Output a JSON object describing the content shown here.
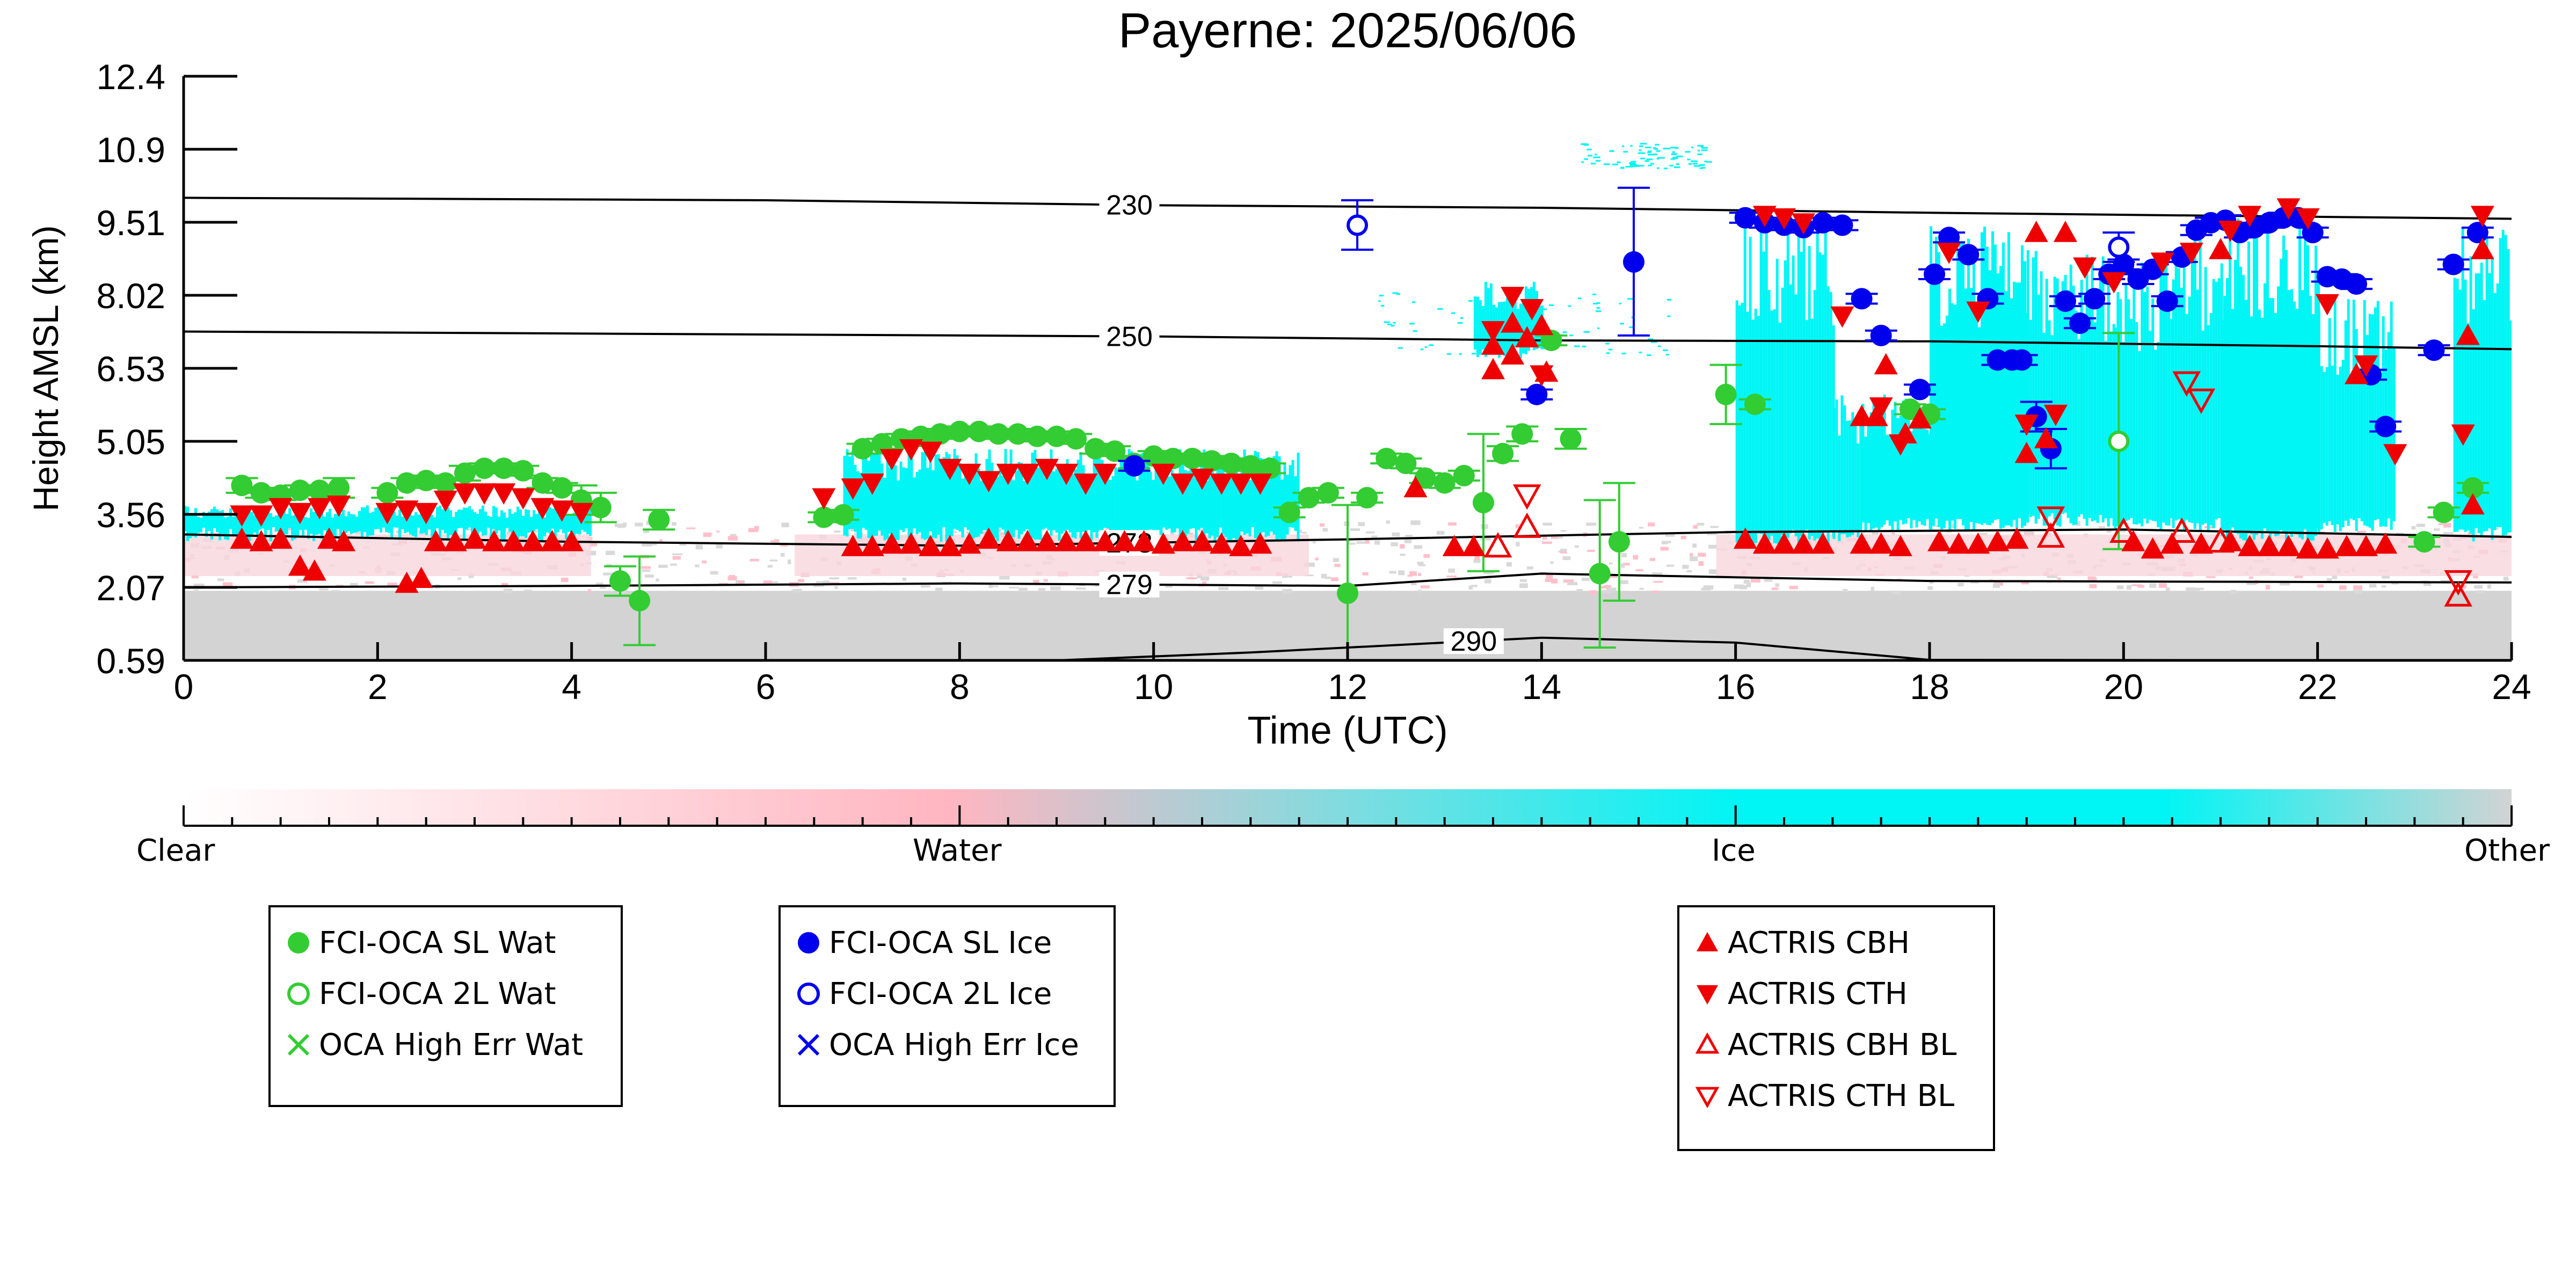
{
  "chart_data": {
    "type": "scatter",
    "title": "Payerne: 2025/06/06",
    "xlabel": "Time (UTC)",
    "ylabel": "Height AMSL (km)",
    "xlim": [
      0,
      24
    ],
    "ylim": [
      0.59,
      12.4
    ],
    "x_ticks": [
      "0",
      "2",
      "4",
      "6",
      "8",
      "10",
      "12",
      "14",
      "16",
      "18",
      "20",
      "22",
      "24"
    ],
    "y_ticks": [
      "0.59",
      "2.07",
      "3.56",
      "5.05",
      "6.53",
      "8.02",
      "9.51",
      "10.9",
      "12.4"
    ],
    "y_tick_values": [
      0.59,
      2.07,
      3.56,
      5.05,
      6.53,
      8.02,
      9.51,
      10.97,
      12.4
    ],
    "colorbar": {
      "labels": [
        "Clear",
        "Water",
        "Ice",
        "Other"
      ],
      "colors": [
        "#ffffff",
        "#ffb6c1",
        "#00ffff",
        "#d3d3d3"
      ]
    },
    "isotherms": [
      {
        "label": "230",
        "label_x": 9.75,
        "points": [
          [
            0,
            10.0
          ],
          [
            6,
            9.95
          ],
          [
            10,
            9.85
          ],
          [
            14,
            9.8
          ],
          [
            18,
            9.7
          ],
          [
            22,
            9.62
          ],
          [
            24,
            9.58
          ]
        ]
      },
      {
        "label": "250",
        "label_x": 9.75,
        "points": [
          [
            0,
            7.28
          ],
          [
            6,
            7.22
          ],
          [
            10,
            7.18
          ],
          [
            14,
            7.1
          ],
          [
            18,
            7.08
          ],
          [
            22,
            6.98
          ],
          [
            24,
            6.92
          ]
        ]
      },
      {
        "label": "273",
        "label_x": 9.75,
        "points": [
          [
            0,
            3.15
          ],
          [
            4,
            3.0
          ],
          [
            8,
            2.92
          ],
          [
            12,
            3.05
          ],
          [
            16,
            3.2
          ],
          [
            20,
            3.25
          ],
          [
            24,
            3.1
          ]
        ]
      },
      {
        "label": "279",
        "label_x": 9.75,
        "points": [
          [
            0,
            2.07
          ],
          [
            4,
            2.1
          ],
          [
            8,
            2.15
          ],
          [
            12,
            2.1
          ],
          [
            14,
            2.35
          ],
          [
            18,
            2.2
          ],
          [
            24,
            2.17
          ]
        ]
      },
      {
        "label": "290",
        "label_x": 13.3,
        "points": [
          [
            0,
            0.59
          ],
          [
            9,
            0.59
          ],
          [
            11,
            0.75
          ],
          [
            13,
            0.95
          ],
          [
            14,
            1.05
          ],
          [
            16,
            0.95
          ],
          [
            18,
            0.6
          ],
          [
            24,
            0.59
          ]
        ]
      }
    ],
    "series": [
      {
        "name": "FCI-OCA SL Wat",
        "color": "#33cc33",
        "marker": "filled-circle",
        "x": [
          0.6,
          0.8,
          1.0,
          1.2,
          1.4,
          1.6,
          2.1,
          2.3,
          2.5,
          2.7,
          2.9,
          3.1,
          3.3,
          3.5,
          3.7,
          3.9,
          4.1,
          4.3,
          4.5,
          4.7,
          4.9,
          6.6,
          6.8,
          7.0,
          7.2,
          7.4,
          7.6,
          7.8,
          8.0,
          8.2,
          8.4,
          8.6,
          8.8,
          9.0,
          9.2,
          9.4,
          9.6,
          9.8,
          10.0,
          10.2,
          10.4,
          10.6,
          10.8,
          11.0,
          11.2,
          11.4,
          11.6,
          11.8,
          12.0,
          12.2,
          12.4,
          12.6,
          12.8,
          13.0,
          13.2,
          13.4,
          13.6,
          13.8,
          14.1,
          14.3,
          14.6,
          14.8,
          15.9,
          16.2,
          17.8,
          18.0,
          23.1,
          23.3,
          23.6
        ],
        "y": [
          4.15,
          4.0,
          3.95,
          4.05,
          4.05,
          4.1,
          4.0,
          4.2,
          4.25,
          4.2,
          4.4,
          4.5,
          4.5,
          4.45,
          4.2,
          4.1,
          3.85,
          3.7,
          2.2,
          1.8,
          3.45,
          3.5,
          3.55,
          4.9,
          5.0,
          5.1,
          5.15,
          5.2,
          5.25,
          5.25,
          5.2,
          5.2,
          5.15,
          5.15,
          5.1,
          4.9,
          4.85,
          4.6,
          4.75,
          4.7,
          4.7,
          4.65,
          4.6,
          4.55,
          4.5,
          3.6,
          3.9,
          4.0,
          1.95,
          3.9,
          4.7,
          4.6,
          4.3,
          4.2,
          4.35,
          3.8,
          4.8,
          5.2,
          7.1,
          5.1,
          2.35,
          3.0,
          6.0,
          5.8,
          5.7,
          5.6,
          3.0,
          3.6,
          4.1
        ],
        "yerr": [
          0.15,
          0.1,
          0.1,
          0.1,
          0.1,
          0.2,
          0.1,
          0.1,
          0.1,
          0.1,
          0.15,
          0.1,
          0.1,
          0.1,
          0.1,
          0.1,
          0.3,
          0.3,
          0.3,
          0.9,
          0.2,
          0.1,
          0.1,
          0.1,
          0.1,
          0.1,
          0.1,
          0.1,
          0.1,
          0.1,
          0.1,
          0.1,
          0.1,
          0.1,
          0.1,
          0.1,
          0.1,
          0.1,
          0.1,
          0.1,
          0.1,
          0.1,
          0.1,
          0.1,
          0.1,
          0.1,
          0.1,
          0.1,
          1.8,
          0.1,
          0.1,
          0.1,
          0.1,
          0.1,
          0.1,
          1.4,
          0.15,
          0.15,
          0.1,
          0.2,
          1.5,
          1.2,
          0.6,
          0.1,
          0.1,
          0.1,
          0.1,
          0.1,
          0.1
        ]
      },
      {
        "name": "FCI-OCA 2L Wat",
        "color": "#33cc33",
        "marker": "open-circle",
        "x": [
          19.95
        ],
        "y": [
          5.05
        ],
        "yerr": [
          2.2
        ]
      },
      {
        "name": "OCA High Err Wat",
        "color": "#33cc33",
        "marker": "x",
        "x": [],
        "y": []
      },
      {
        "name": "FCI-OCA SL Ice",
        "color": "#0000ee",
        "marker": "filled-circle",
        "x": [
          9.8,
          13.95,
          14.95,
          16.1,
          16.3,
          16.5,
          16.7,
          16.9,
          17.1,
          17.3,
          17.5,
          17.9,
          18.05,
          18.2,
          18.4,
          18.6,
          18.7,
          18.85,
          18.95,
          19.1,
          19.25,
          19.4,
          19.55,
          19.7,
          19.85,
          20.0,
          20.15,
          20.3,
          20.45,
          20.6,
          20.75,
          20.9,
          21.05,
          21.2,
          21.35,
          21.5,
          21.65,
          21.8,
          21.95,
          22.1,
          22.25,
          22.4,
          22.55,
          22.7,
          23.2,
          23.4,
          23.65
        ],
        "y": [
          4.55,
          6.0,
          8.7,
          9.6,
          9.5,
          9.45,
          9.4,
          9.5,
          9.45,
          7.95,
          7.2,
          6.1,
          8.45,
          9.2,
          8.85,
          7.95,
          6.7,
          6.7,
          6.7,
          5.55,
          4.9,
          7.9,
          7.45,
          7.95,
          8.45,
          8.65,
          8.35,
          8.55,
          7.9,
          8.8,
          9.35,
          9.5,
          9.55,
          9.3,
          9.4,
          9.5,
          9.6,
          9.6,
          9.3,
          8.4,
          8.35,
          8.25,
          6.4,
          5.35,
          6.9,
          8.65,
          9.3
        ],
        "yerr": [
          0.1,
          0.1,
          1.5,
          0.1,
          0.1,
          0.1,
          0.1,
          0.1,
          0.1,
          0.1,
          0.1,
          0.1,
          0.1,
          0.1,
          0.1,
          0.1,
          0.1,
          0.1,
          0.1,
          0.3,
          0.4,
          0.1,
          0.1,
          0.1,
          0.1,
          0.1,
          0.1,
          0.1,
          0.1,
          0.1,
          0.1,
          0.1,
          0.1,
          0.1,
          0.1,
          0.1,
          0.1,
          0.1,
          0.1,
          0.1,
          0.1,
          0.1,
          0.1,
          0.1,
          0.1,
          0.1,
          0.1
        ]
      },
      {
        "name": "FCI-OCA 2L Ice",
        "color": "#0000ee",
        "marker": "open-circle",
        "x": [
          12.1,
          19.95
        ],
        "y": [
          9.45,
          9.0
        ],
        "yerr": [
          0.5,
          0.3
        ]
      },
      {
        "name": "OCA High Err Ice",
        "color": "#0000ee",
        "marker": "x",
        "x": [],
        "y": []
      },
      {
        "name": "ACTRIS CBH",
        "color": "#ee0000",
        "marker": "triangle-up",
        "x": [
          0.6,
          0.8,
          1.0,
          1.2,
          1.35,
          1.5,
          1.65,
          2.3,
          2.45,
          2.6,
          2.8,
          3.0,
          3.2,
          3.4,
          3.6,
          3.8,
          4.0,
          6.9,
          7.1,
          7.3,
          7.5,
          7.7,
          7.9,
          8.1,
          8.3,
          8.5,
          8.7,
          8.9,
          9.1,
          9.3,
          9.5,
          9.7,
          9.9,
          10.1,
          10.3,
          10.5,
          10.7,
          10.9,
          11.1,
          12.7,
          13.1,
          13.3,
          13.5,
          13.7,
          14.0,
          16.1,
          16.3,
          16.5,
          16.7,
          16.9,
          17.3,
          17.5,
          17.7,
          18.1,
          18.3,
          18.5,
          18.7,
          18.9,
          19.2,
          20.1,
          20.3,
          20.5,
          20.8,
          21.1,
          21.3,
          21.5,
          21.7,
          21.9,
          22.1,
          22.3,
          22.5,
          22.7,
          23.6
        ],
        "y": [
          3.05,
          3.0,
          3.05,
          2.5,
          2.4,
          3.05,
          3.0,
          2.15,
          2.25,
          3.0,
          3.0,
          3.05,
          3.0,
          3.0,
          3.0,
          3.0,
          3.0,
          2.9,
          2.9,
          2.95,
          2.95,
          2.9,
          2.9,
          2.95,
          3.05,
          3.0,
          3.0,
          3.0,
          3.0,
          3.0,
          3.0,
          3.0,
          3.0,
          2.95,
          3.0,
          3.0,
          2.95,
          2.9,
          2.95,
          4.1,
          2.9,
          2.9,
          7.0,
          6.8,
          7.4,
          3.05,
          2.95,
          2.95,
          2.95,
          2.95,
          2.95,
          2.95,
          2.9,
          3.0,
          2.95,
          2.95,
          3.0,
          3.05,
          5.1,
          3.0,
          2.85,
          2.95,
          2.95,
          3.0,
          2.9,
          2.9,
          2.9,
          2.85,
          2.85,
          2.9,
          2.9,
          2.95,
          3.75
        ],
        "marker2_y": [
          6.5,
          7.45,
          7.15,
          6.45,
          5.55,
          5.55,
          6.6,
          5.2,
          5.5,
          4.8,
          9.3,
          9.3,
          8.95,
          6.4,
          7.2,
          8.95
        ]
      },
      {
        "name": "ACTRIS CTH",
        "color": "#ee0000",
        "marker": "triangle-down",
        "x": [
          0.6,
          0.8,
          1.0,
          1.2,
          1.4,
          1.6,
          2.1,
          2.3,
          2.5,
          2.7,
          2.9,
          3.1,
          3.3,
          3.5,
          3.7,
          3.9,
          4.1,
          6.6,
          6.9,
          7.1,
          7.3,
          7.5,
          7.7,
          7.9,
          8.1,
          8.3,
          8.5,
          8.7,
          8.9,
          9.1,
          9.3,
          9.5,
          10.1,
          10.3,
          10.5,
          10.7,
          10.9,
          11.1,
          13.5,
          13.7,
          13.9,
          14.0,
          16.3,
          16.5,
          16.7,
          17.1,
          17.5,
          17.7,
          18.2,
          18.5,
          19.0,
          19.3,
          19.6,
          19.9,
          20.4,
          20.7,
          21.1,
          21.3,
          21.7,
          21.9,
          22.1,
          22.5,
          22.8,
          23.5,
          23.7
        ],
        "y": [
          3.55,
          3.55,
          3.7,
          3.6,
          3.7,
          3.75,
          3.6,
          3.65,
          3.6,
          3.85,
          4.0,
          4.0,
          4.0,
          3.9,
          3.7,
          3.65,
          3.6,
          3.9,
          4.1,
          4.2,
          4.7,
          4.9,
          4.85,
          4.5,
          4.4,
          4.25,
          4.4,
          4.4,
          4.5,
          4.4,
          4.2,
          4.4,
          4.4,
          4.2,
          4.3,
          4.2,
          4.2,
          4.2,
          7.3,
          8.0,
          7.75,
          6.4,
          9.65,
          9.6,
          9.5,
          7.6,
          5.75,
          5.0,
          8.9,
          7.7,
          5.4,
          5.6,
          8.6,
          8.3,
          8.7,
          8.9,
          9.35,
          9.65,
          9.8,
          9.6,
          7.85,
          6.6,
          4.8,
          5.2,
          9.65
        ]
      },
      {
        "name": "ACTRIS CBH BL",
        "color": "#ee0000",
        "marker": "open-triangle-up",
        "x": [
          13.55,
          13.85,
          19.25,
          20.0,
          20.6,
          21.0,
          23.45
        ],
        "y": [
          2.9,
          3.3,
          3.1,
          3.2,
          3.2,
          3.0,
          1.9
        ]
      },
      {
        "name": "ACTRIS CTH BL",
        "color": "#ee0000",
        "marker": "open-triangle-down",
        "x": [
          13.85,
          19.25,
          20.65,
          20.8,
          23.45
        ],
        "y": [
          3.95,
          3.5,
          6.25,
          5.9,
          2.2
        ]
      }
    ]
  },
  "legends": [
    [
      "FCI-OCA SL Wat",
      "FCI-OCA 2L Wat",
      "OCA High Err Wat"
    ],
    [
      "FCI-OCA SL Ice",
      "FCI-OCA 2L Ice",
      "OCA High Err Ice"
    ],
    [
      "ACTRIS CBH",
      "ACTRIS CTH",
      "ACTRIS CBH BL",
      "ACTRIS CTH BL"
    ]
  ]
}
